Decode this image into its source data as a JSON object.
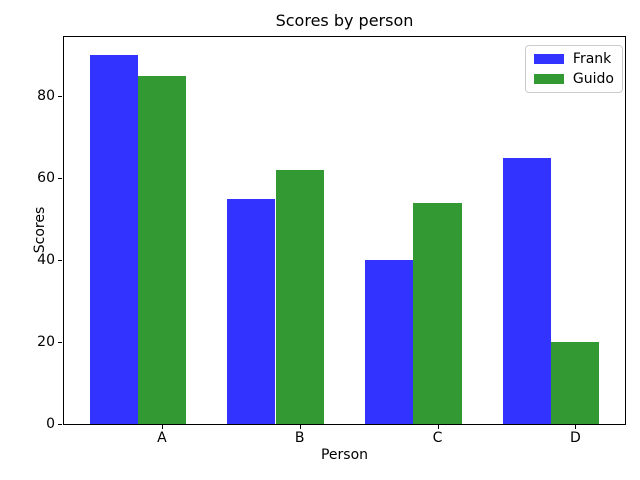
{
  "chart_data": {
    "type": "bar",
    "title": "Scores by person",
    "xlabel": "Person",
    "ylabel": "Scores",
    "categories": [
      "A",
      "B",
      "C",
      "D"
    ],
    "series": [
      {
        "name": "Frank",
        "color": "#3333ff",
        "values": [
          90,
          55,
          40,
          65
        ]
      },
      {
        "name": "Guido",
        "color": "#339933",
        "values": [
          85,
          62,
          54,
          20
        ]
      }
    ],
    "yticks": [
      0,
      20,
      40,
      60,
      80
    ],
    "ylim": [
      0,
      94.5
    ],
    "xlim": [
      -0.36,
      3.71
    ],
    "bar_width_units": 0.35,
    "grid": false,
    "legend_position": "upper right"
  }
}
